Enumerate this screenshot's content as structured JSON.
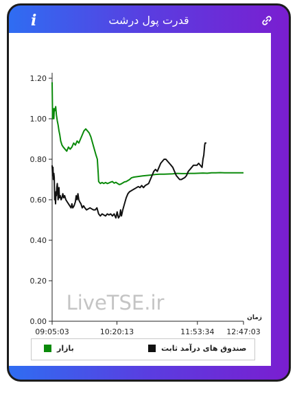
{
  "header": {
    "title": "قدرت پول درشت",
    "info_icon": "info-icon",
    "link_icon": "link-icon"
  },
  "watermark": "LiveTSE.ir",
  "legend": {
    "items": [
      {
        "label": "بازار",
        "color": "#0a8a0a"
      },
      {
        "label": "صندوق های درآمد ثابت",
        "color": "#111111"
      }
    ]
  },
  "chart_data": {
    "type": "line",
    "xlabel": "زمان",
    "ylabel": "",
    "ylim": [
      0,
      1.2
    ],
    "y_ticks": [
      "0.00",
      "0.20",
      "0.40",
      "0.60",
      "0.80",
      "1.00",
      "1.20"
    ],
    "x_tick_labels": [
      "09:05:03",
      "10:20:13",
      "11:53:34",
      "12:47:03"
    ],
    "x_range_minutes": [
      545.05,
      767.05
    ],
    "x_tick_minutes": [
      545.05,
      620.22,
      713.57,
      767.05
    ],
    "grid": false,
    "legend_position": "bottom",
    "series": [
      {
        "name": "بازار",
        "color": "#0a8a0a",
        "points": [
          [
            545.05,
            1.18
          ],
          [
            545.6,
            1.0
          ],
          [
            546.2,
            1.05
          ],
          [
            547.0,
            1.0
          ],
          [
            547.6,
            1.05
          ],
          [
            548.4,
            1.04
          ],
          [
            549.2,
            1.06
          ],
          [
            550.0,
            1.02
          ],
          [
            551.0,
            0.99
          ],
          [
            552.0,
            0.97
          ],
          [
            553.0,
            0.94
          ],
          [
            554.0,
            0.92
          ],
          [
            555.0,
            0.89
          ],
          [
            556.5,
            0.87
          ],
          [
            558.0,
            0.86
          ],
          [
            560.0,
            0.85
          ],
          [
            562.0,
            0.84
          ],
          [
            564.0,
            0.86
          ],
          [
            566.0,
            0.85
          ],
          [
            568.0,
            0.86
          ],
          [
            570.0,
            0.88
          ],
          [
            572.0,
            0.87
          ],
          [
            574.0,
            0.89
          ],
          [
            576.0,
            0.88
          ],
          [
            578.0,
            0.9
          ],
          [
            580.0,
            0.92
          ],
          [
            582.0,
            0.94
          ],
          [
            584.0,
            0.95
          ],
          [
            586.0,
            0.94
          ],
          [
            588.0,
            0.93
          ],
          [
            590.0,
            0.91
          ],
          [
            592.0,
            0.88
          ],
          [
            594.0,
            0.85
          ],
          [
            596.0,
            0.82
          ],
          [
            597.5,
            0.8
          ],
          [
            598.5,
            0.73
          ],
          [
            599.0,
            0.69
          ],
          [
            601.0,
            0.68
          ],
          [
            603.0,
            0.685
          ],
          [
            605.0,
            0.68
          ],
          [
            607.0,
            0.685
          ],
          [
            609.0,
            0.68
          ],
          [
            611.0,
            0.683
          ],
          [
            613.0,
            0.687
          ],
          [
            615.0,
            0.69
          ],
          [
            617.0,
            0.682
          ],
          [
            619.0,
            0.686
          ],
          [
            621.0,
            0.68
          ],
          [
            623.0,
            0.675
          ],
          [
            625.0,
            0.678
          ],
          [
            627.0,
            0.683
          ],
          [
            629.0,
            0.688
          ],
          [
            631.0,
            0.69
          ],
          [
            633.0,
            0.695
          ],
          [
            635.0,
            0.7
          ],
          [
            637.0,
            0.708
          ],
          [
            640.0,
            0.712
          ],
          [
            645.0,
            0.715
          ],
          [
            650.0,
            0.718
          ],
          [
            655.0,
            0.72
          ],
          [
            660.0,
            0.722
          ],
          [
            665.0,
            0.725
          ],
          [
            670.0,
            0.726
          ],
          [
            675.0,
            0.726
          ],
          [
            680.0,
            0.727
          ],
          [
            685.0,
            0.728
          ],
          [
            690.0,
            0.73
          ],
          [
            695.0,
            0.729
          ],
          [
            700.0,
            0.729
          ],
          [
            705.0,
            0.73
          ],
          [
            710.0,
            0.73
          ],
          [
            715.0,
            0.731
          ],
          [
            720.0,
            0.732
          ],
          [
            725.0,
            0.731
          ],
          [
            730.0,
            0.733
          ],
          [
            735.0,
            0.733
          ],
          [
            740.0,
            0.734
          ],
          [
            745.0,
            0.733
          ],
          [
            750.0,
            0.733
          ],
          [
            755.0,
            0.733
          ],
          [
            760.0,
            0.733
          ],
          [
            765.0,
            0.733
          ],
          [
            767.05,
            0.733
          ]
        ]
      },
      {
        "name": "صندوق های درآمد ثابت",
        "color": "#111111",
        "points": [
          [
            545.05,
            0.77
          ],
          [
            545.5,
            0.72
          ],
          [
            546.0,
            0.76
          ],
          [
            546.5,
            0.7
          ],
          [
            547.0,
            0.73
          ],
          [
            547.5,
            0.71
          ],
          [
            548.0,
            0.6
          ],
          [
            548.5,
            0.63
          ],
          [
            549.0,
            0.58
          ],
          [
            549.5,
            0.64
          ],
          [
            550.0,
            0.62
          ],
          [
            550.5,
            0.66
          ],
          [
            551.0,
            0.68
          ],
          [
            551.5,
            0.65
          ],
          [
            552.0,
            0.6
          ],
          [
            552.5,
            0.62
          ],
          [
            553.0,
            0.66
          ],
          [
            553.5,
            0.61
          ],
          [
            554.5,
            0.62
          ],
          [
            555.5,
            0.6
          ],
          [
            556.5,
            0.61
          ],
          [
            557.5,
            0.63
          ],
          [
            558.5,
            0.61
          ],
          [
            559.5,
            0.62
          ],
          [
            561.0,
            0.6
          ],
          [
            562.5,
            0.59
          ],
          [
            564.0,
            0.58
          ],
          [
            565.5,
            0.57
          ],
          [
            567.0,
            0.56
          ],
          [
            568.0,
            0.58
          ],
          [
            569.0,
            0.56
          ],
          [
            570.5,
            0.57
          ],
          [
            572.0,
            0.59
          ],
          [
            573.0,
            0.62
          ],
          [
            574.0,
            0.6
          ],
          [
            575.0,
            0.63
          ],
          [
            576.0,
            0.6
          ],
          [
            577.0,
            0.59
          ],
          [
            578.5,
            0.58
          ],
          [
            580.0,
            0.56
          ],
          [
            581.5,
            0.57
          ],
          [
            583.0,
            0.56
          ],
          [
            585.0,
            0.55
          ],
          [
            587.0,
            0.555
          ],
          [
            589.0,
            0.56
          ],
          [
            591.0,
            0.555
          ],
          [
            593.0,
            0.55
          ],
          [
            595.0,
            0.55
          ],
          [
            597.0,
            0.56
          ],
          [
            599.0,
            0.53
          ],
          [
            601.0,
            0.52
          ],
          [
            603.0,
            0.53
          ],
          [
            605.0,
            0.525
          ],
          [
            607.0,
            0.52
          ],
          [
            609.0,
            0.53
          ],
          [
            611.0,
            0.525
          ],
          [
            613.0,
            0.53
          ],
          [
            615.0,
            0.52
          ],
          [
            617.0,
            0.53
          ],
          [
            619.0,
            0.51
          ],
          [
            620.5,
            0.54
          ],
          [
            622.0,
            0.51
          ],
          [
            623.5,
            0.52
          ],
          [
            624.5,
            0.55
          ],
          [
            625.5,
            0.52
          ],
          [
            627.0,
            0.55
          ],
          [
            629.0,
            0.58
          ],
          [
            631.0,
            0.61
          ],
          [
            633.0,
            0.63
          ],
          [
            635.0,
            0.64
          ],
          [
            637.0,
            0.645
          ],
          [
            639.0,
            0.65
          ],
          [
            641.0,
            0.655
          ],
          [
            643.0,
            0.66
          ],
          [
            645.0,
            0.665
          ],
          [
            647.0,
            0.66
          ],
          [
            649.0,
            0.67
          ],
          [
            651.0,
            0.66
          ],
          [
            653.0,
            0.67
          ],
          [
            655.0,
            0.675
          ],
          [
            657.0,
            0.68
          ],
          [
            659.0,
            0.7
          ],
          [
            661.0,
            0.72
          ],
          [
            663.0,
            0.74
          ],
          [
            665.0,
            0.75
          ],
          [
            667.0,
            0.74
          ],
          [
            669.0,
            0.76
          ],
          [
            671.0,
            0.78
          ],
          [
            673.0,
            0.79
          ],
          [
            675.0,
            0.8
          ],
          [
            677.0,
            0.8
          ],
          [
            679.0,
            0.79
          ],
          [
            681.0,
            0.78
          ],
          [
            683.0,
            0.77
          ],
          [
            685.0,
            0.76
          ],
          [
            687.0,
            0.74
          ],
          [
            689.0,
            0.72
          ],
          [
            691.0,
            0.71
          ],
          [
            693.0,
            0.7
          ],
          [
            695.0,
            0.7
          ],
          [
            697.0,
            0.705
          ],
          [
            699.0,
            0.71
          ],
          [
            701.0,
            0.72
          ],
          [
            703.0,
            0.74
          ],
          [
            705.0,
            0.75
          ],
          [
            707.0,
            0.76
          ],
          [
            709.0,
            0.77
          ],
          [
            711.0,
            0.77
          ],
          [
            713.0,
            0.77
          ],
          [
            715.0,
            0.78
          ],
          [
            717.0,
            0.77
          ],
          [
            719.0,
            0.76
          ],
          [
            720.0,
            0.8
          ],
          [
            721.0,
            0.82
          ],
          [
            722.0,
            0.87
          ],
          [
            722.5,
            0.88
          ],
          [
            724.0,
            0.88
          ]
        ]
      }
    ]
  }
}
